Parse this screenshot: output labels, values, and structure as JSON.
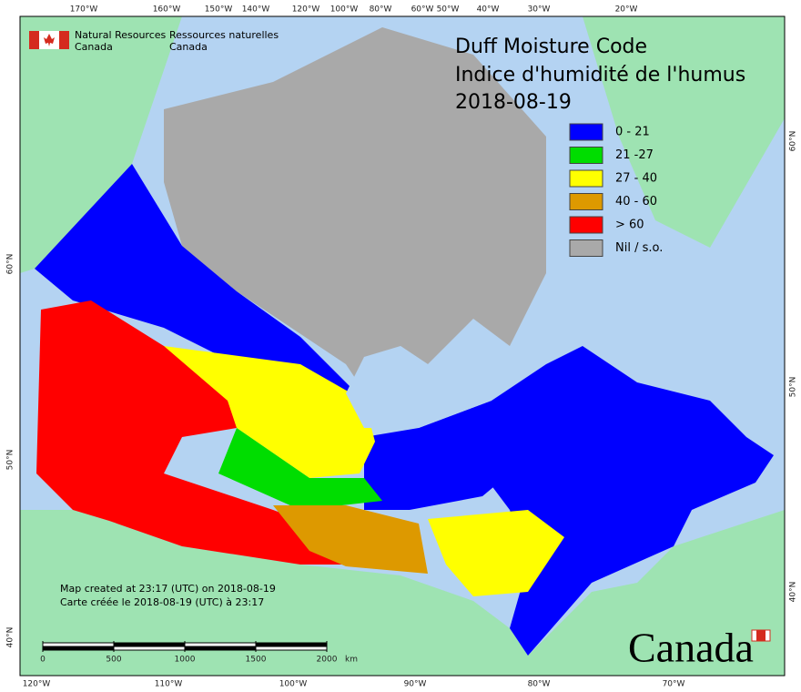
{
  "agency": {
    "en_line1": "Natural Resources",
    "en_line2": "Canada",
    "fr_line1": "Ressources naturelles",
    "fr_line2": "Canada"
  },
  "title": {
    "line1": "Duff Moisture Code",
    "line2": "Indice d'humidité de l'humus",
    "date": "2018-08-19"
  },
  "legend": [
    {
      "label": "0 - 21",
      "color": "#0000ff"
    },
    {
      "label": "21 -27",
      "color": "#00dd00"
    },
    {
      "label": "27 - 40",
      "color": "#ffff00"
    },
    {
      "label": "40 - 60",
      "color": "#dd9900"
    },
    {
      "label": "> 60",
      "color": "#ff0000"
    },
    {
      "label": "Nil / s.o.",
      "color": "#a9a9a9"
    }
  ],
  "longitude_top": [
    "170°W",
    "160°W",
    "150°W",
    "140°W",
    "120°W",
    "100°W",
    "80°W",
    "60°W",
    "50°W",
    "40°W",
    "30°W",
    "20°W"
  ],
  "longitude_bottom": [
    "120°W",
    "110°W",
    "100°W",
    "90°W",
    "80°W",
    "70°W"
  ],
  "latitude_left": [
    "60°N",
    "50°N",
    "40°N"
  ],
  "latitude_right": [
    "60°N",
    "50°N",
    "40°N"
  ],
  "scale": {
    "ticks": [
      0,
      500,
      1000,
      1500,
      2000
    ],
    "unit": "km"
  },
  "footer": {
    "created_en": "Map created at 23:17 (UTC) on 2018-08-19",
    "created_fr": "Carte créée le 2018-08-19 (UTC) à 23:17"
  },
  "wordmark": "Canada"
}
